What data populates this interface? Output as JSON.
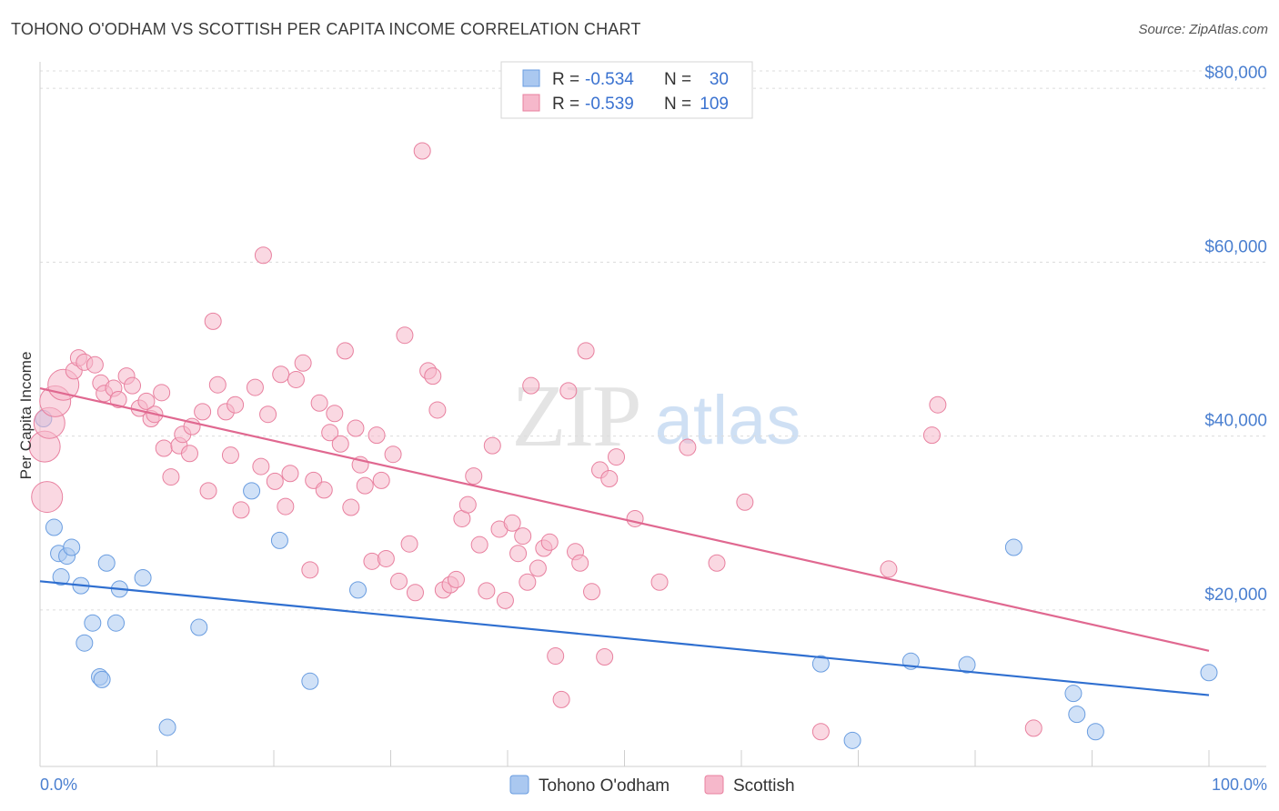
{
  "title": "TOHONO O'ODHAM VS SCOTTISH PER CAPITA INCOME CORRELATION CHART",
  "source": "Source: ZipAtlas.com",
  "watermark": {
    "zip": "ZIP",
    "atlas": "atlas"
  },
  "colors": {
    "tohono_fill": "#aac8f0",
    "tohono_stroke": "#6a9de0",
    "tohono_line": "#2f6fd0",
    "scottish_fill": "#f6b8cb",
    "scottish_stroke": "#e8809f",
    "scottish_line": "#e06890",
    "axis_label": "#4a7fd0",
    "grid": "#dcdcdc"
  },
  "legend": {
    "rows": [
      {
        "r_label": "R =",
        "r_value": "-0.534",
        "n_label": "N =",
        "n_value": "30"
      },
      {
        "r_label": "R =",
        "r_value": "-0.539",
        "n_label": "N =",
        "n_value": "109"
      }
    ]
  },
  "bottom_legend": {
    "items": [
      "Tohono O'odham",
      "Scottish"
    ]
  },
  "chart_data": {
    "type": "scatter",
    "ylabel": "Per Capita Income",
    "xlim": [
      0,
      100
    ],
    "ylim": [
      2000,
      82000
    ],
    "x_tick_labels": [
      "0.0%",
      "100.0%"
    ],
    "y_ticks": [
      20000,
      40000,
      60000,
      80000
    ],
    "y_tick_labels": [
      "$20,000",
      "$40,000",
      "$60,000",
      "$80,000"
    ],
    "grid": true,
    "legend_position": "top-center",
    "series": [
      {
        "name": "Tohono O'odham",
        "points": [
          [
            0.3,
            42000
          ],
          [
            1.2,
            29500
          ],
          [
            1.6,
            26500
          ],
          [
            1.8,
            23800
          ],
          [
            2.3,
            26200
          ],
          [
            2.7,
            27200
          ],
          [
            3.5,
            22800
          ],
          [
            3.8,
            16200
          ],
          [
            4.5,
            18500
          ],
          [
            5.1,
            12300
          ],
          [
            5.3,
            12000
          ],
          [
            5.7,
            25400
          ],
          [
            6.5,
            18500
          ],
          [
            6.8,
            22400
          ],
          [
            8.8,
            23700
          ],
          [
            10.9,
            6500
          ],
          [
            13.6,
            18000
          ],
          [
            18.1,
            33700
          ],
          [
            20.5,
            28000
          ],
          [
            23.1,
            11800
          ],
          [
            27.2,
            22300
          ],
          [
            66.8,
            13800
          ],
          [
            69.5,
            5000
          ],
          [
            74.5,
            14100
          ],
          [
            79.3,
            13700
          ],
          [
            83.3,
            27200
          ],
          [
            88.4,
            10400
          ],
          [
            88.7,
            8000
          ],
          [
            90.3,
            6000
          ],
          [
            100.0,
            12800
          ]
        ],
        "trend": [
          [
            0,
            23300
          ],
          [
            100,
            10200
          ]
        ]
      },
      {
        "name": "Scottish",
        "points": [
          [
            0.4,
            38800
          ],
          [
            0.6,
            33000
          ],
          [
            0.8,
            41500
          ],
          [
            1.3,
            44000
          ],
          [
            2.0,
            45900
          ],
          [
            2.9,
            47500
          ],
          [
            3.3,
            49000
          ],
          [
            3.8,
            48500
          ],
          [
            4.7,
            48200
          ],
          [
            5.2,
            46100
          ],
          [
            5.5,
            44900
          ],
          [
            6.3,
            45500
          ],
          [
            6.7,
            44200
          ],
          [
            7.4,
            46900
          ],
          [
            7.9,
            45800
          ],
          [
            8.5,
            43200
          ],
          [
            9.1,
            44000
          ],
          [
            9.5,
            42000
          ],
          [
            9.8,
            42500
          ],
          [
            10.4,
            45000
          ],
          [
            10.6,
            38600
          ],
          [
            11.2,
            35300
          ],
          [
            11.9,
            38900
          ],
          [
            12.2,
            40200
          ],
          [
            12.8,
            38000
          ],
          [
            13.0,
            41100
          ],
          [
            13.9,
            42800
          ],
          [
            14.4,
            33700
          ],
          [
            14.8,
            53200
          ],
          [
            15.2,
            45900
          ],
          [
            15.9,
            42800
          ],
          [
            16.3,
            37800
          ],
          [
            16.7,
            43600
          ],
          [
            17.2,
            31500
          ],
          [
            18.4,
            45600
          ],
          [
            18.9,
            36500
          ],
          [
            19.1,
            60800
          ],
          [
            19.5,
            42500
          ],
          [
            20.1,
            34800
          ],
          [
            20.6,
            47100
          ],
          [
            21.0,
            31900
          ],
          [
            21.4,
            35700
          ],
          [
            21.9,
            46500
          ],
          [
            22.5,
            48400
          ],
          [
            23.1,
            24600
          ],
          [
            23.4,
            34900
          ],
          [
            23.9,
            43800
          ],
          [
            24.3,
            33800
          ],
          [
            24.8,
            40400
          ],
          [
            25.2,
            42600
          ],
          [
            25.7,
            39100
          ],
          [
            26.1,
            49800
          ],
          [
            26.6,
            31800
          ],
          [
            27.0,
            40900
          ],
          [
            27.4,
            36700
          ],
          [
            27.8,
            34300
          ],
          [
            28.4,
            25600
          ],
          [
            28.8,
            40100
          ],
          [
            29.2,
            34900
          ],
          [
            29.6,
            25900
          ],
          [
            30.2,
            37900
          ],
          [
            30.7,
            23300
          ],
          [
            31.2,
            51600
          ],
          [
            31.6,
            27600
          ],
          [
            32.1,
            22000
          ],
          [
            32.7,
            72800
          ],
          [
            33.2,
            47500
          ],
          [
            33.6,
            46900
          ],
          [
            34.0,
            43000
          ],
          [
            34.5,
            22300
          ],
          [
            35.1,
            22900
          ],
          [
            35.6,
            23500
          ],
          [
            36.1,
            30500
          ],
          [
            36.6,
            32100
          ],
          [
            37.1,
            35400
          ],
          [
            37.6,
            27500
          ],
          [
            38.2,
            22200
          ],
          [
            38.7,
            38900
          ],
          [
            39.3,
            29300
          ],
          [
            39.8,
            21100
          ],
          [
            40.4,
            30000
          ],
          [
            40.9,
            26500
          ],
          [
            41.3,
            28500
          ],
          [
            41.7,
            23200
          ],
          [
            42.0,
            45800
          ],
          [
            42.6,
            24800
          ],
          [
            43.1,
            27100
          ],
          [
            43.6,
            27800
          ],
          [
            44.1,
            14700
          ],
          [
            44.6,
            9700
          ],
          [
            45.2,
            45200
          ],
          [
            45.8,
            26700
          ],
          [
            46.2,
            25400
          ],
          [
            46.7,
            49800
          ],
          [
            47.2,
            22100
          ],
          [
            47.9,
            36100
          ],
          [
            48.3,
            14600
          ],
          [
            48.7,
            35100
          ],
          [
            49.3,
            37600
          ],
          [
            50.9,
            30500
          ],
          [
            53.0,
            23200
          ],
          [
            55.4,
            38700
          ],
          [
            57.9,
            25400
          ],
          [
            60.3,
            32400
          ],
          [
            66.8,
            6000
          ],
          [
            72.6,
            24700
          ],
          [
            76.3,
            40100
          ],
          [
            76.8,
            43600
          ],
          [
            85.0,
            6400
          ]
        ],
        "trend": [
          [
            0,
            45500
          ],
          [
            100,
            15300
          ]
        ]
      }
    ]
  }
}
